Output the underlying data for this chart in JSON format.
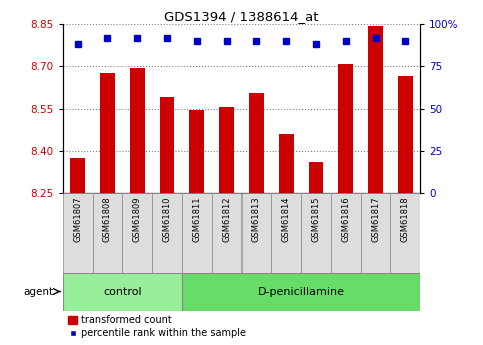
{
  "title": "GDS1394 / 1388614_at",
  "samples": [
    "GSM61807",
    "GSM61808",
    "GSM61809",
    "GSM61810",
    "GSM61811",
    "GSM61812",
    "GSM61813",
    "GSM61814",
    "GSM61815",
    "GSM61816",
    "GSM61817",
    "GSM61818"
  ],
  "transformed_count": [
    8.375,
    8.675,
    8.695,
    8.59,
    8.545,
    8.555,
    8.605,
    8.46,
    8.36,
    8.71,
    8.845,
    8.665
  ],
  "percentile_rank": [
    88,
    92,
    92,
    92,
    90,
    90,
    90,
    90,
    88,
    90,
    92,
    90
  ],
  "ylim_left": [
    8.25,
    8.85
  ],
  "ylim_right": [
    0,
    100
  ],
  "yticks_left": [
    8.25,
    8.4,
    8.55,
    8.7,
    8.85
  ],
  "yticks_right": [
    0,
    25,
    50,
    75,
    100
  ],
  "bar_color": "#cc0000",
  "dot_color": "#0000cc",
  "bar_width": 0.5,
  "n_control": 4,
  "n_treatment": 8,
  "control_label": "control",
  "treatment_label": "D-penicillamine",
  "agent_label": "agent",
  "legend_bar_label": "transformed count",
  "legend_dot_label": "percentile rank within the sample",
  "control_color": "#99ee99",
  "treatment_color": "#66dd66",
  "sample_box_color": "#dddddd",
  "dot_size": 5
}
